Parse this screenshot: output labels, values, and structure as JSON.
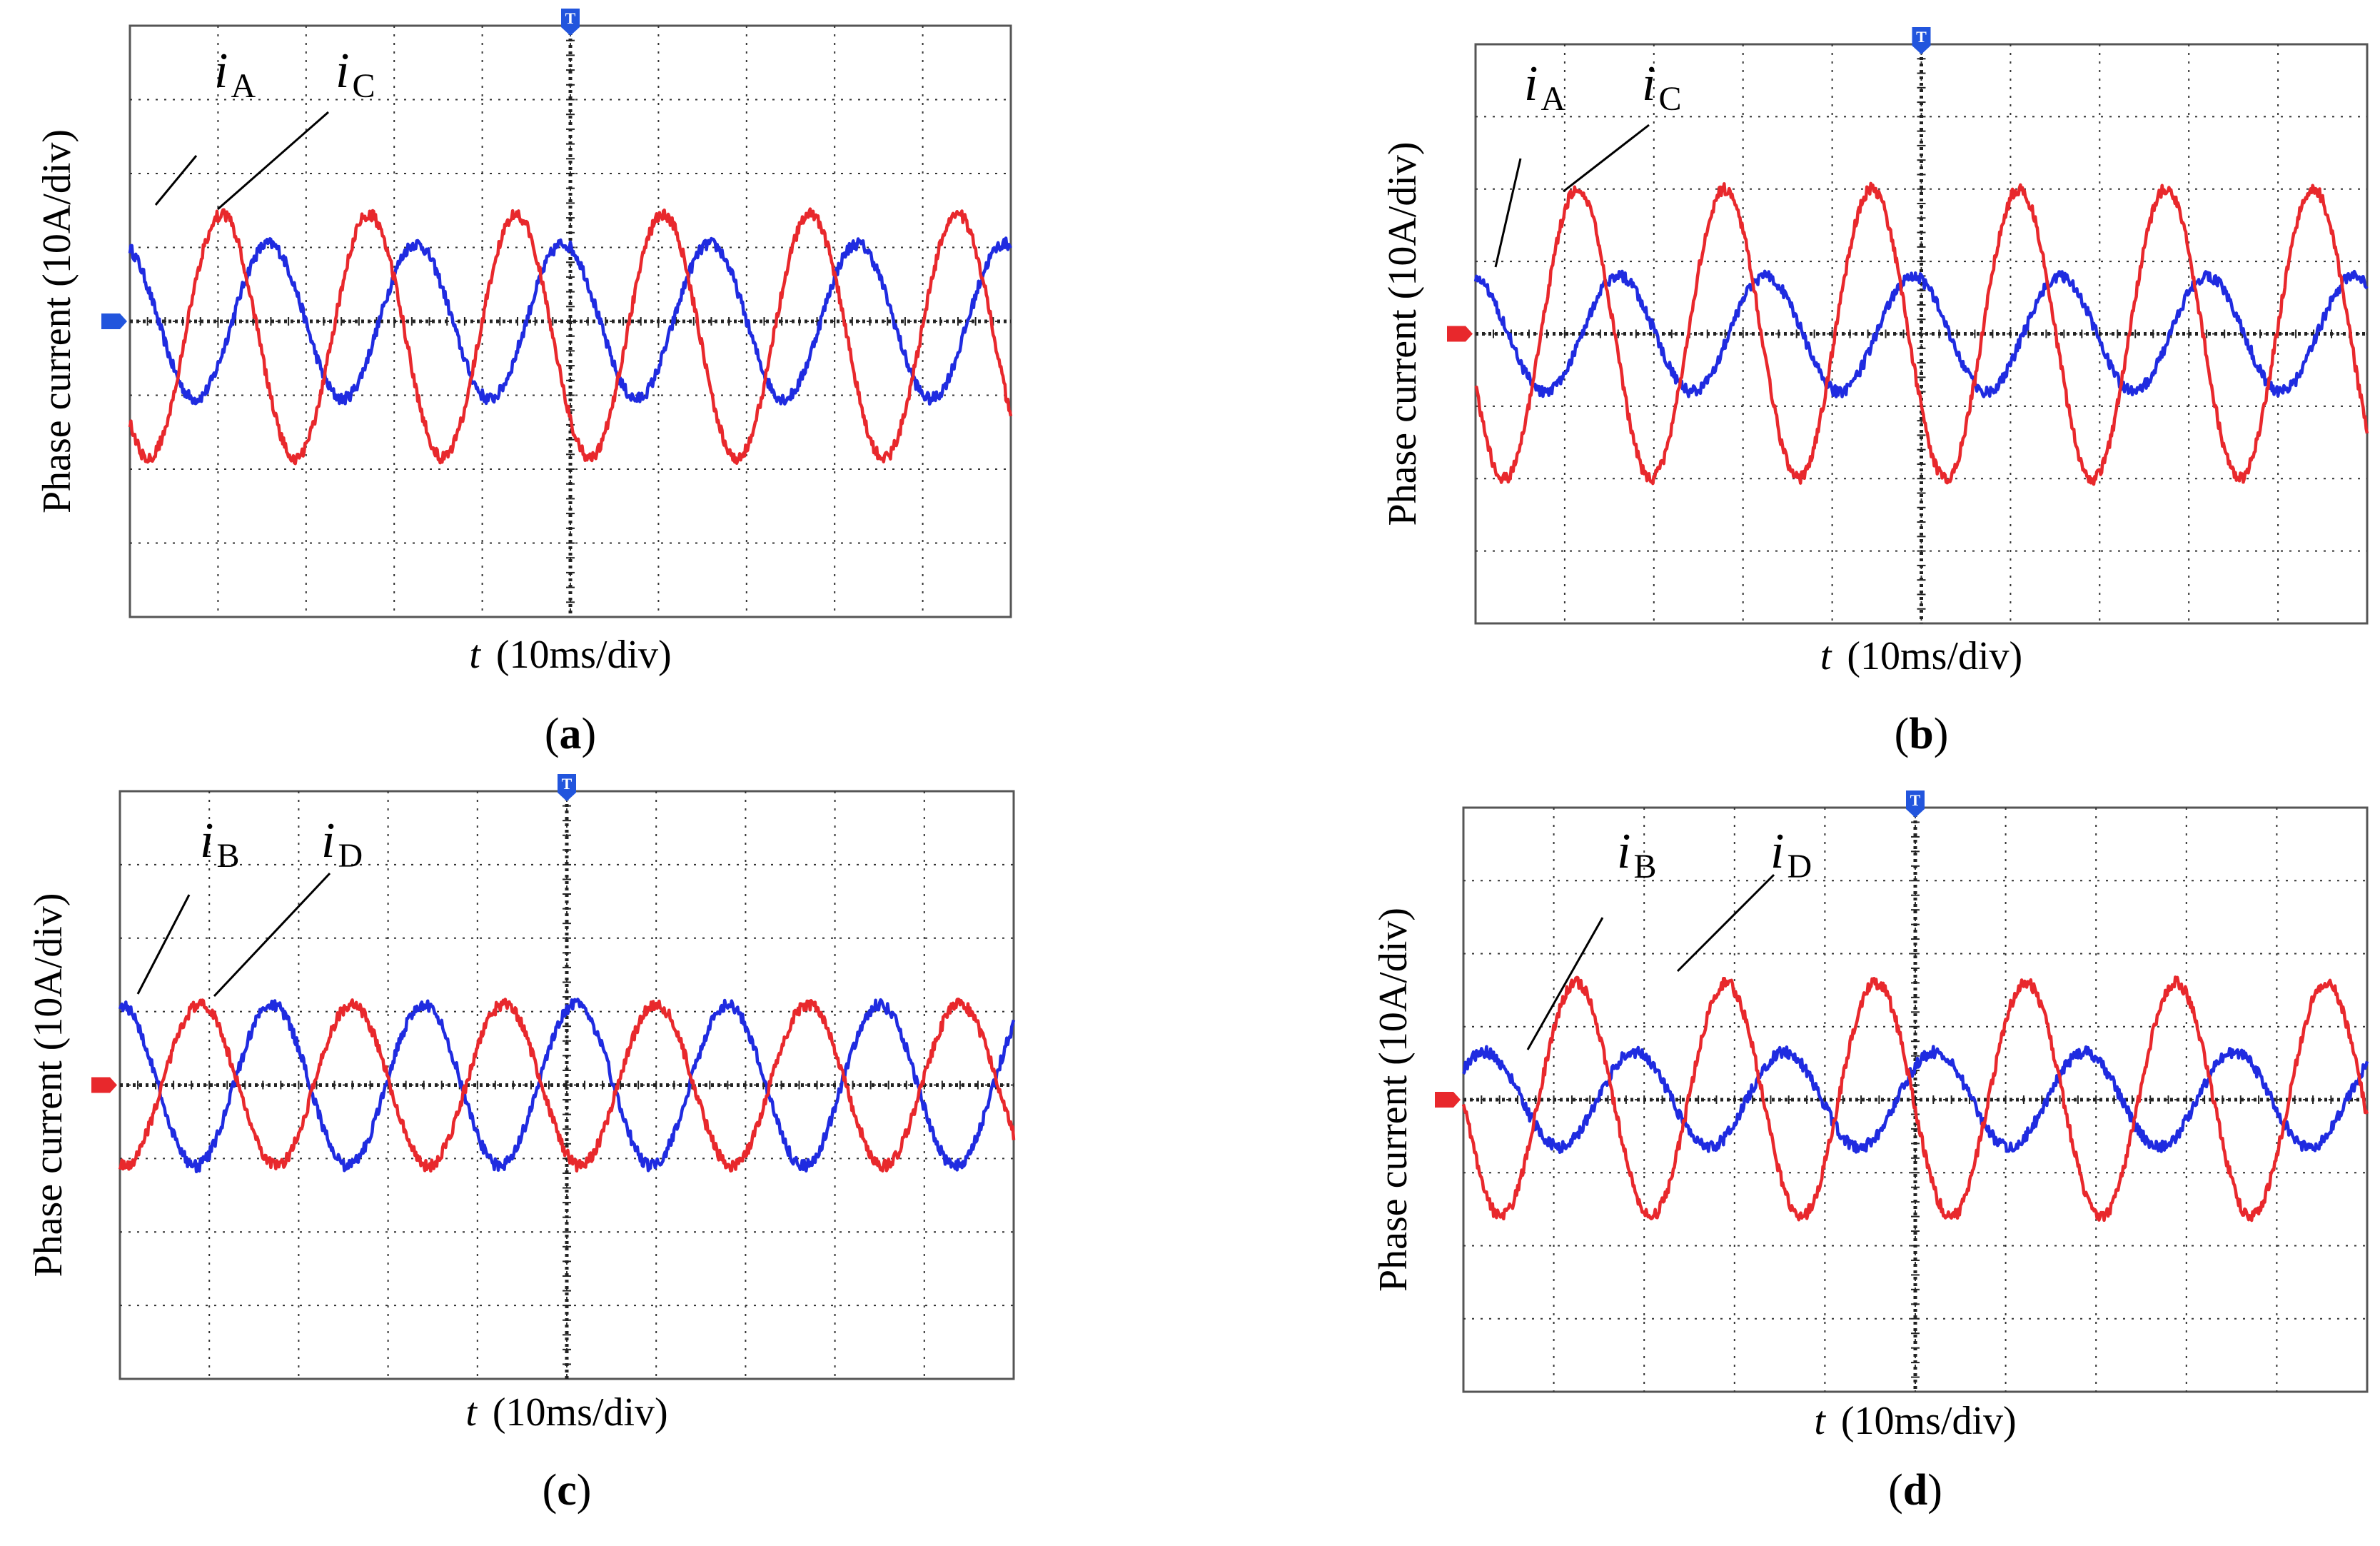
{
  "colors": {
    "trace_red": "#e8282c",
    "trace_blue": "#1f2be0",
    "grid": "#333333",
    "frame": "#555555",
    "marker_blue": "#2255dd",
    "marker_red": "#e8282c"
  },
  "chart_data": [
    {
      "type": "line",
      "label": "a",
      "ylabel": "Phase current  (10A/div)",
      "xlabel_var": "t",
      "xlabel_unit": "(10ms/div)",
      "x_unit": "ms",
      "y_unit": "A",
      "xlim": [
        0,
        100
      ],
      "ylim": [
        -40,
        40
      ],
      "trigger_marker": "T",
      "ground_marker_color": "blue",
      "series": [
        {
          "name": "iA",
          "main": "i",
          "sub": "A",
          "color": "blue",
          "amplitude_A": 10.5,
          "offset_A": 0,
          "period_ms": 16.7,
          "phase_deg": 110
        },
        {
          "name": "iC",
          "main": "i",
          "sub": "C",
          "color": "red",
          "amplitude_A": 16.5,
          "offset_A": -2,
          "period_ms": 16.7,
          "phase_deg": 225
        }
      ]
    },
    {
      "type": "line",
      "label": "b",
      "ylabel": "Phase current  (10A/div)",
      "xlabel_var": "t",
      "xlabel_unit": "(10ms/div)",
      "x_unit": "ms",
      "y_unit": "A",
      "xlim": [
        0,
        100
      ],
      "ylim": [
        -40,
        40
      ],
      "trigger_marker": "T",
      "ground_marker_color": "red",
      "series": [
        {
          "name": "iA",
          "main": "i",
          "sub": "A",
          "color": "blue",
          "amplitude_A": 8,
          "offset_A": 0,
          "period_ms": 16.5,
          "phase_deg": 100
        },
        {
          "name": "iC",
          "main": "i",
          "sub": "C",
          "color": "red",
          "amplitude_A": 20,
          "offset_A": 0,
          "period_ms": 16.5,
          "phase_deg": 200
        }
      ]
    },
    {
      "type": "line",
      "label": "c",
      "ylabel": "Phase current  (10A/div)",
      "xlabel_var": "t",
      "xlabel_unit": "(10ms/div)",
      "x_unit": "ms",
      "y_unit": "A",
      "xlim": [
        0,
        100
      ],
      "ylim": [
        -40,
        40
      ],
      "trigger_marker": "T",
      "ground_marker_color": "red",
      "series": [
        {
          "name": "iB",
          "main": "i",
          "sub": "B",
          "color": "blue",
          "amplitude_A": 11,
          "offset_A": 0,
          "period_ms": 17,
          "phase_deg": 90
        },
        {
          "name": "iD",
          "main": "i",
          "sub": "D",
          "color": "red",
          "amplitude_A": 11,
          "offset_A": 0,
          "period_ms": 17,
          "phase_deg": 260
        }
      ]
    },
    {
      "type": "line",
      "label": "d",
      "ylabel": "Phase current  (10A/div)",
      "xlabel_var": "t",
      "xlabel_unit": "(10ms/div)",
      "x_unit": "ms",
      "y_unit": "A",
      "xlim": [
        0,
        100
      ],
      "ylim": [
        -40,
        40
      ],
      "trigger_marker": "T",
      "ground_marker_color": "red",
      "series": [
        {
          "name": "iB",
          "main": "i",
          "sub": "B",
          "color": "blue",
          "amplitude_A": 6.5,
          "offset_A": 0,
          "period_ms": 16.6,
          "phase_deg": 40
        },
        {
          "name": "iD",
          "main": "i",
          "sub": "D",
          "color": "red",
          "amplitude_A": 16,
          "offset_A": 0,
          "period_ms": 16.6,
          "phase_deg": 180
        }
      ]
    }
  ]
}
